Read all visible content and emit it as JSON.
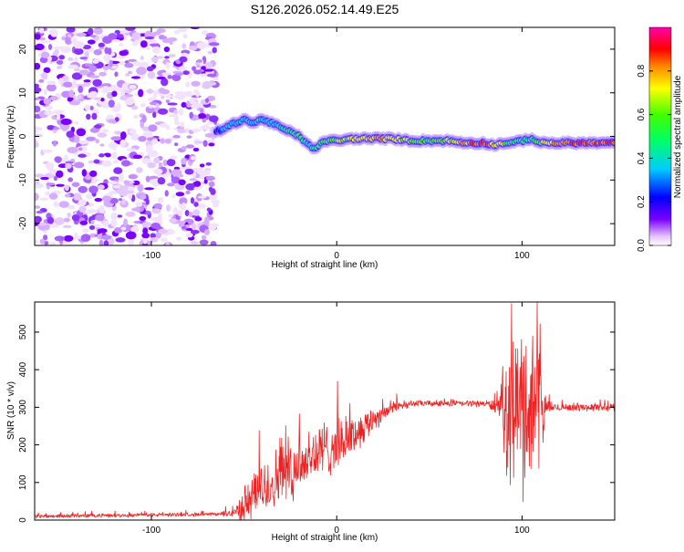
{
  "title": "S126.2026.052.14.49.E25",
  "chart_data": [
    {
      "type": "heatmap",
      "xlabel": "Height of straight line (km)",
      "ylabel": "Frequency (Hz)",
      "xlim": [
        -163,
        150
      ],
      "ylim": [
        -25,
        25
      ],
      "xticks": [
        -100,
        0,
        100
      ],
      "yticks": [
        -20,
        -10,
        0,
        10,
        20
      ],
      "colorbar": {
        "label": "Normalized spectral amplitude",
        "range": [
          0,
          1
        ],
        "ticks": [
          0.0,
          0.2,
          0.4,
          0.6,
          0.8
        ]
      },
      "noise_region_x": [
        -163,
        -65
      ],
      "ridge": {
        "x": [
          -65,
          -60,
          -55,
          -50,
          -45,
          -40,
          -35,
          -30,
          -25,
          -20,
          -15,
          -12,
          -10,
          -5,
          0,
          10,
          20,
          30,
          40,
          50,
          60,
          70,
          80,
          85,
          90,
          95,
          100,
          105,
          110,
          120,
          130,
          140,
          150
        ],
        "freq": [
          1,
          2,
          3,
          4,
          3,
          4,
          3,
          2,
          1,
          0,
          -2,
          -3,
          -2,
          -1,
          -1,
          -0.5,
          -0.5,
          -0.5,
          -1,
          -1,
          -1,
          -1.5,
          -1.5,
          -2,
          -1.5,
          -1.5,
          -1,
          -0.5,
          -1.5,
          -1.5,
          -1.5,
          -1.5,
          -1.5
        ],
        "amp": [
          0.3,
          0.35,
          0.4,
          0.4,
          0.45,
          0.45,
          0.45,
          0.5,
          0.5,
          0.6,
          0.5,
          0.5,
          0.55,
          0.6,
          0.7,
          0.75,
          0.85,
          0.8,
          0.7,
          0.6,
          0.7,
          0.85,
          0.9,
          0.8,
          0.7,
          0.55,
          0.5,
          0.55,
          0.7,
          0.9,
          0.9,
          0.9,
          0.9
        ]
      }
    },
    {
      "type": "line",
      "xlabel": "Height of straight line (km)",
      "ylabel": "SNR (10 * v/v)",
      "xlim": [
        -163,
        150
      ],
      "ylim": [
        0,
        580
      ],
      "xticks": [
        -100,
        0,
        100
      ],
      "yticks": [
        0,
        100,
        200,
        300,
        400,
        500
      ],
      "color": "#ee2222",
      "envelope": {
        "x": [
          -163,
          -80,
          -65,
          -55,
          -50,
          -40,
          -30,
          -20,
          -10,
          0,
          10,
          20,
          30,
          40,
          50,
          60,
          70,
          80,
          88,
          92,
          100,
          105,
          110,
          113,
          120,
          130,
          150
        ],
        "base": [
          10,
          15,
          15,
          20,
          40,
          80,
          120,
          150,
          180,
          200,
          230,
          270,
          300,
          310,
          310,
          310,
          310,
          310,
          300,
          300,
          300,
          300,
          300,
          300,
          300,
          300,
          300
        ],
        "spread": [
          6,
          6,
          6,
          15,
          60,
          90,
          100,
          100,
          100,
          80,
          60,
          40,
          20,
          10,
          10,
          10,
          10,
          10,
          30,
          220,
          260,
          270,
          270,
          20,
          12,
          12,
          12
        ]
      }
    }
  ]
}
